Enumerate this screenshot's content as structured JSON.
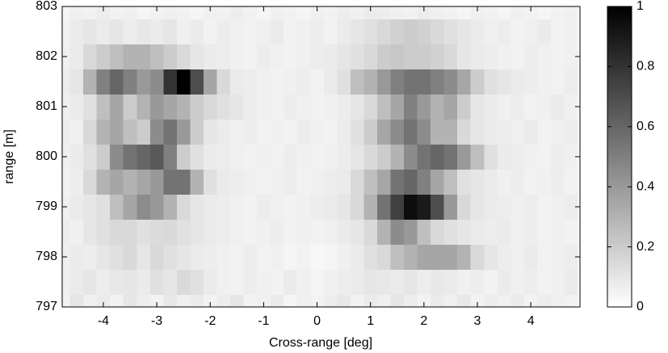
{
  "chart_data": {
    "type": "heatmap",
    "xlabel": "Cross-range [deg]",
    "ylabel": "range [m]",
    "x": [
      -4.75,
      -4.5,
      -4.25,
      -4,
      -3.75,
      -3.5,
      -3.25,
      -3,
      -2.75,
      -2.5,
      -2.25,
      -2,
      -1.75,
      -1.5,
      -1.25,
      -1,
      -0.75,
      -0.5,
      -0.25,
      0,
      0.25,
      0.5,
      0.75,
      1,
      1.25,
      1.5,
      1.75,
      2,
      2.25,
      2.5,
      2.75,
      3,
      3.25,
      3.5,
      3.75,
      4,
      4.25,
      4.5,
      4.75
    ],
    "y": [
      797,
      797.5,
      798,
      798.5,
      799,
      799.5,
      800,
      800.5,
      801,
      801.5,
      802,
      802.5,
      803
    ],
    "z": [
      [
        0.05,
        0.1,
        0.06,
        0.08,
        0.05,
        0.1,
        0.07,
        0.05,
        0.09,
        0.06,
        0.08,
        0.05,
        0.07,
        0.1,
        0.05,
        0.06,
        0.08,
        0.04,
        0.06,
        0.05,
        0.07,
        0.09,
        0.05,
        0.08,
        0.06,
        0.1,
        0.07,
        0.05,
        0.08,
        0.06,
        0.09,
        0.05,
        0.07,
        0.06,
        0.08,
        0.05,
        0.07,
        0.06,
        0.05
      ],
      [
        0.06,
        0.08,
        0.1,
        0.07,
        0.09,
        0.1,
        0.08,
        0.12,
        0.1,
        0.15,
        0.12,
        0.08,
        0.06,
        0.05,
        0.07,
        0.06,
        0.05,
        0.08,
        0.06,
        0.04,
        0.06,
        0.07,
        0.08,
        0.1,
        0.09,
        0.08,
        0.1,
        0.07,
        0.09,
        0.08,
        0.06,
        0.07,
        0.05,
        0.08,
        0.06,
        0.07,
        0.05,
        0.06,
        0.08
      ],
      [
        0.06,
        0.08,
        0.07,
        0.1,
        0.12,
        0.15,
        0.1,
        0.15,
        0.12,
        0.1,
        0.08,
        0.07,
        0.06,
        0.05,
        0.07,
        0.05,
        0.06,
        0.04,
        0.05,
        0.03,
        0.04,
        0.06,
        0.08,
        0.12,
        0.15,
        0.25,
        0.3,
        0.35,
        0.35,
        0.35,
        0.3,
        0.15,
        0.1,
        0.07,
        0.06,
        0.08,
        0.05,
        0.06,
        0.07
      ],
      [
        0.07,
        0.06,
        0.1,
        0.12,
        0.15,
        0.15,
        0.12,
        0.14,
        0.15,
        0.12,
        0.1,
        0.08,
        0.07,
        0.06,
        0.05,
        0.06,
        0.07,
        0.05,
        0.06,
        0.05,
        0.06,
        0.08,
        0.1,
        0.15,
        0.3,
        0.45,
        0.4,
        0.25,
        0.15,
        0.12,
        0.1,
        0.08,
        0.07,
        0.08,
        0.06,
        0.07,
        0.05,
        0.06,
        0.05
      ],
      [
        0.06,
        0.08,
        0.1,
        0.12,
        0.25,
        0.35,
        0.45,
        0.4,
        0.3,
        0.15,
        0.1,
        0.08,
        0.07,
        0.06,
        0.05,
        0.07,
        0.06,
        0.05,
        0.06,
        0.07,
        0.08,
        0.1,
        0.15,
        0.3,
        0.55,
        0.75,
        0.95,
        0.9,
        0.7,
        0.4,
        0.15,
        0.1,
        0.08,
        0.07,
        0.06,
        0.07,
        0.05,
        0.06,
        0.07
      ],
      [
        0.05,
        0.07,
        0.15,
        0.3,
        0.35,
        0.3,
        0.35,
        0.4,
        0.55,
        0.55,
        0.3,
        0.12,
        0.08,
        0.07,
        0.06,
        0.05,
        0.06,
        0.07,
        0.05,
        0.06,
        0.07,
        0.08,
        0.15,
        0.25,
        0.35,
        0.55,
        0.6,
        0.5,
        0.35,
        0.25,
        0.12,
        0.1,
        0.08,
        0.06,
        0.07,
        0.05,
        0.06,
        0.07,
        0.05
      ],
      [
        0.06,
        0.08,
        0.12,
        0.2,
        0.45,
        0.55,
        0.6,
        0.65,
        0.5,
        0.2,
        0.12,
        0.08,
        0.07,
        0.06,
        0.05,
        0.06,
        0.05,
        0.07,
        0.06,
        0.05,
        0.06,
        0.07,
        0.1,
        0.15,
        0.2,
        0.3,
        0.45,
        0.55,
        0.6,
        0.55,
        0.4,
        0.25,
        0.12,
        0.08,
        0.07,
        0.06,
        0.05,
        0.07,
        0.06
      ],
      [
        0.07,
        0.06,
        0.15,
        0.3,
        0.35,
        0.25,
        0.2,
        0.45,
        0.55,
        0.4,
        0.2,
        0.1,
        0.08,
        0.06,
        0.07,
        0.05,
        0.06,
        0.05,
        0.07,
        0.06,
        0.05,
        0.08,
        0.12,
        0.2,
        0.35,
        0.45,
        0.55,
        0.45,
        0.3,
        0.3,
        0.15,
        0.1,
        0.08,
        0.07,
        0.06,
        0.08,
        0.05,
        0.06,
        0.07
      ],
      [
        0.06,
        0.08,
        0.12,
        0.25,
        0.35,
        0.2,
        0.3,
        0.4,
        0.35,
        0.3,
        0.2,
        0.15,
        0.12,
        0.1,
        0.07,
        0.06,
        0.05,
        0.07,
        0.06,
        0.05,
        0.06,
        0.07,
        0.1,
        0.15,
        0.25,
        0.35,
        0.5,
        0.4,
        0.3,
        0.35,
        0.2,
        0.1,
        0.08,
        0.06,
        0.07,
        0.05,
        0.06,
        0.08,
        0.06
      ],
      [
        0.07,
        0.1,
        0.3,
        0.5,
        0.6,
        0.5,
        0.4,
        0.45,
        0.8,
        1,
        0.7,
        0.35,
        0.15,
        0.08,
        0.07,
        0.06,
        0.05,
        0.06,
        0.07,
        0.05,
        0.08,
        0.12,
        0.25,
        0.3,
        0.4,
        0.5,
        0.55,
        0.55,
        0.5,
        0.45,
        0.35,
        0.2,
        0.12,
        0.1,
        0.08,
        0.07,
        0.06,
        0.05,
        0.07
      ],
      [
        0.06,
        0.08,
        0.15,
        0.2,
        0.25,
        0.3,
        0.3,
        0.25,
        0.2,
        0.15,
        0.1,
        0.08,
        0.07,
        0.06,
        0.05,
        0.07,
        0.06,
        0.05,
        0.06,
        0.07,
        0.08,
        0.1,
        0.12,
        0.15,
        0.2,
        0.22,
        0.2,
        0.2,
        0.18,
        0.15,
        0.1,
        0.08,
        0.07,
        0.06,
        0.05,
        0.07,
        0.06,
        0.05,
        0.06
      ],
      [
        0.05,
        0.08,
        0.1,
        0.08,
        0.1,
        0.07,
        0.09,
        0.08,
        0.1,
        0.06,
        0.08,
        0.05,
        0.07,
        0.06,
        0.05,
        0.06,
        0.08,
        0.05,
        0.06,
        0.07,
        0.05,
        0.08,
        0.1,
        0.12,
        0.15,
        0.18,
        0.2,
        0.18,
        0.15,
        0.12,
        0.1,
        0.08,
        0.06,
        0.07,
        0.05,
        0.06,
        0.08,
        0.05,
        0.06
      ],
      [
        0.04,
        0.06,
        0.05,
        0.07,
        0.05,
        0.06,
        0.04,
        0.05,
        0.06,
        0.05,
        0.04,
        0.06,
        0.05,
        0.07,
        0.05,
        0.04,
        0.06,
        0.05,
        0.04,
        0.06,
        0.05,
        0.07,
        0.06,
        0.08,
        0.07,
        0.06,
        0.05,
        0.07,
        0.06,
        0.05,
        0.04,
        0.06,
        0.05,
        0.04,
        0.06,
        0.05,
        0.04,
        0.05,
        0.06
      ]
    ],
    "xlim": [
      -4.77,
      4.92
    ],
    "ylim": [
      797,
      803
    ],
    "xticks": [
      -4,
      -3,
      -2,
      -1,
      0,
      1,
      2,
      3,
      4
    ],
    "yticks": [
      797,
      798,
      799,
      800,
      801,
      802,
      803
    ],
    "clim": [
      0,
      1
    ],
    "cticks": [
      0,
      0.2,
      0.4,
      0.6,
      0.8,
      1
    ],
    "colormap": [
      "#ffffff",
      "#000000"
    ]
  }
}
